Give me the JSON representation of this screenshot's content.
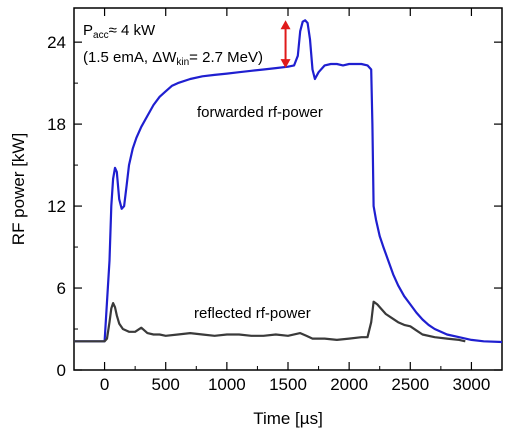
{
  "chart_data": {
    "type": "line",
    "xlabel": "Time [µs]",
    "ylabel": "RF power [kW]",
    "xlim": [
      -250,
      3250
    ],
    "ylim": [
      0,
      26.5
    ],
    "x_ticks": [
      0,
      500,
      1000,
      1500,
      2000,
      2500,
      3000
    ],
    "y_ticks": [
      0,
      6,
      12,
      18,
      24
    ],
    "grid": false,
    "series": [
      {
        "name": "forwarded rf-power",
        "color": "#1f1fd0",
        "x": [
          -250,
          0,
          20,
          40,
          55,
          70,
          85,
          100,
          120,
          140,
          160,
          180,
          200,
          230,
          260,
          300,
          350,
          400,
          450,
          500,
          550,
          600,
          700,
          800,
          900,
          1000,
          1100,
          1200,
          1300,
          1400,
          1500,
          1550,
          1580,
          1600,
          1620,
          1640,
          1660,
          1680,
          1700,
          1720,
          1750,
          1800,
          1850,
          1900,
          1950,
          2000,
          2050,
          2100,
          2150,
          2180,
          2190,
          2200,
          2220,
          2250,
          2280,
          2320,
          2360,
          2400,
          2450,
          2500,
          2550,
          2600,
          2650,
          2700,
          2750,
          2800,
          2900,
          3000,
          3100,
          3250
        ],
        "y": [
          2.1,
          2.1,
          5.0,
          8.0,
          12.0,
          14.0,
          14.8,
          14.5,
          12.5,
          11.8,
          12.0,
          13.5,
          15.0,
          16.2,
          17.0,
          17.8,
          18.6,
          19.4,
          20.0,
          20.4,
          20.8,
          21.0,
          21.3,
          21.5,
          21.6,
          21.7,
          21.8,
          21.9,
          22.0,
          22.1,
          22.2,
          22.3,
          23.0,
          24.8,
          25.5,
          25.6,
          25.4,
          24.2,
          22.0,
          21.3,
          21.8,
          22.3,
          22.4,
          22.4,
          22.3,
          22.4,
          22.4,
          22.4,
          22.3,
          22.0,
          18.0,
          12.0,
          11.0,
          9.8,
          9.0,
          8.0,
          7.0,
          6.2,
          5.4,
          4.8,
          4.2,
          3.7,
          3.3,
          3.0,
          2.8,
          2.6,
          2.4,
          2.2,
          2.1,
          2.05
        ]
      },
      {
        "name": "reflected rf-power",
        "color": "#3a3a3a",
        "x": [
          -250,
          0,
          20,
          40,
          55,
          70,
          85,
          100,
          120,
          150,
          200,
          250,
          300,
          350,
          400,
          450,
          500,
          600,
          700,
          800,
          900,
          1000,
          1100,
          1200,
          1300,
          1400,
          1500,
          1600,
          1650,
          1700,
          1800,
          1900,
          2000,
          2100,
          2150,
          2180,
          2200,
          2230,
          2260,
          2300,
          2350,
          2400,
          2450,
          2500,
          2550,
          2600,
          2700,
          2800,
          2900,
          2950
        ],
        "y": [
          2.1,
          2.1,
          2.3,
          3.5,
          4.5,
          4.9,
          4.6,
          4.0,
          3.4,
          3.0,
          2.8,
          2.8,
          3.1,
          2.7,
          2.6,
          2.6,
          2.5,
          2.6,
          2.7,
          2.6,
          2.5,
          2.6,
          2.6,
          2.5,
          2.5,
          2.6,
          2.5,
          2.7,
          2.5,
          2.3,
          2.3,
          2.2,
          2.3,
          2.4,
          2.4,
          3.5,
          5.0,
          4.8,
          4.5,
          4.1,
          3.8,
          3.5,
          3.3,
          3.2,
          2.9,
          2.6,
          2.4,
          2.3,
          2.2,
          2.1
        ]
      }
    ],
    "annotations": {
      "title_line_prefix": "P",
      "title_line_sub": "acc",
      "title_line_suffix": "≈ 4 kW",
      "line2_prefix": "(1.5 emA, ΔW",
      "line2_sub": "kin",
      "line2_suffix": "= 2.7 MeV)",
      "forwarded_label": "forwarded rf-power",
      "reflected_label": "reflected rf-power",
      "arrow": {
        "x": 1480,
        "y_top": 25.6,
        "y_bottom": 22.1,
        "color": "#e01a1a"
      }
    }
  }
}
